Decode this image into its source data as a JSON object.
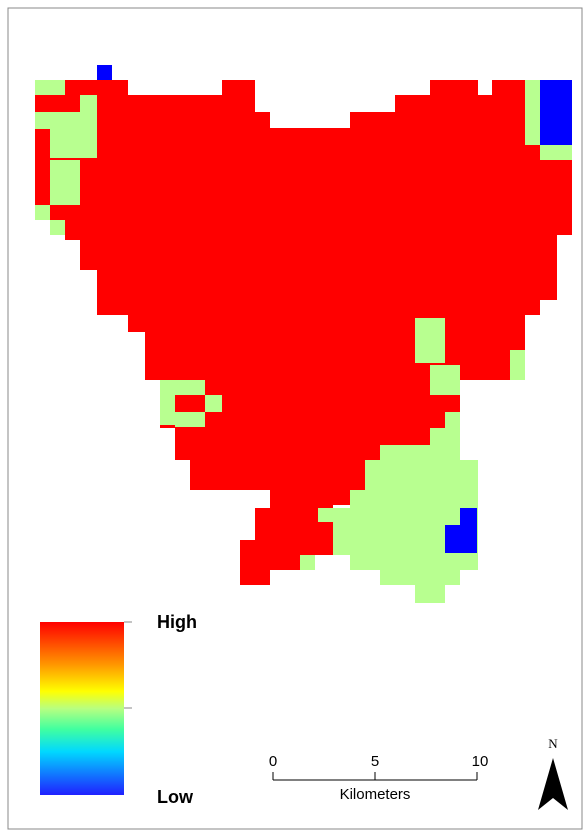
{
  "legend": {
    "high": "High",
    "low": "Low"
  },
  "scale_bar": {
    "ticks": [
      "0",
      "5",
      "10"
    ],
    "unit": "Kilometers"
  },
  "north_arrow": {
    "label": "N"
  }
}
